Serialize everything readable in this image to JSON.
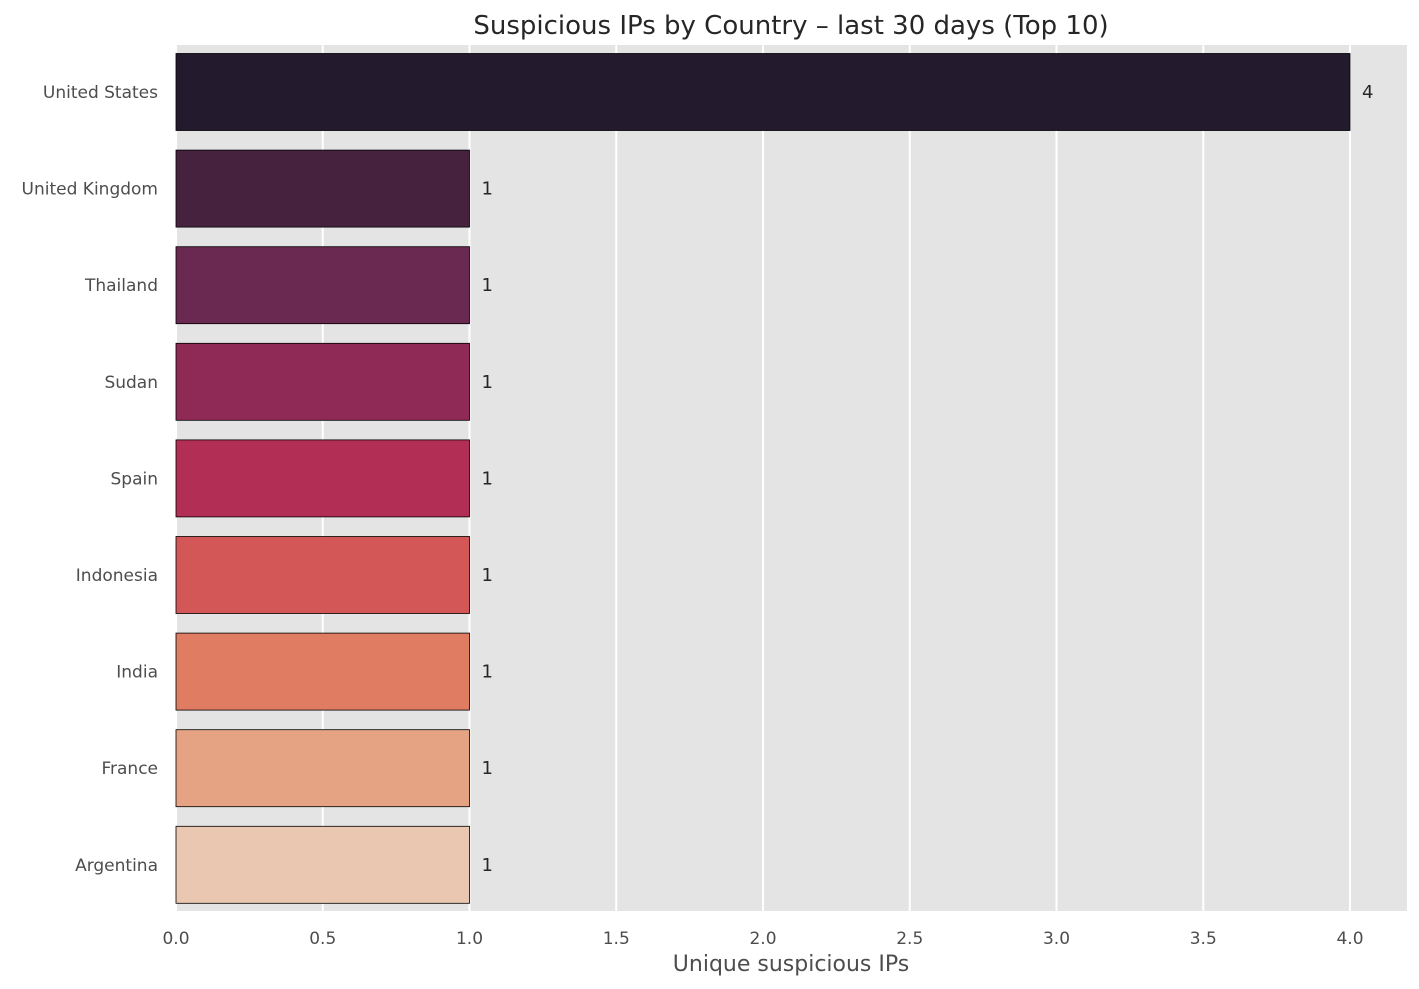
{
  "chart_data": {
    "type": "bar",
    "orientation": "horizontal",
    "title": "Suspicious IPs by Country – last 30 days (Top 10)",
    "xlabel": "Unique suspicious IPs",
    "ylabel": "",
    "xlim": [
      0,
      4.2
    ],
    "xticks": [
      0.0,
      0.5,
      1.0,
      1.5,
      2.0,
      2.5,
      3.0,
      3.5,
      4.0
    ],
    "xtick_labels": [
      "0.0",
      "0.5",
      "1.0",
      "1.5",
      "2.0",
      "2.5",
      "3.0",
      "3.5",
      "4.0"
    ],
    "grid": true,
    "categories": [
      "United States",
      "United Kingdom",
      "Thailand",
      "Sudan",
      "Spain",
      "Indonesia",
      "India",
      "France",
      "Argentina"
    ],
    "values": [
      4,
      1,
      1,
      1,
      1,
      1,
      1,
      1,
      1
    ],
    "value_labels": [
      "4",
      "1",
      "1",
      "1",
      "1",
      "1",
      "1",
      "1",
      "1"
    ],
    "colors": [
      "#241a2e",
      "#46223f",
      "#6a2950",
      "#8f2a56",
      "#b32e54",
      "#d35757",
      "#e07c62",
      "#e5a384",
      "#eac7b0"
    ],
    "plot_background": "#e4e4e4",
    "grid_color": "#ffffff",
    "bar_edge_color": "#000000"
  }
}
